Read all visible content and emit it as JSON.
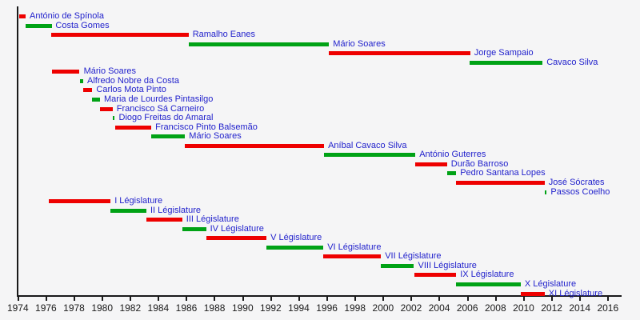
{
  "chart_data": {
    "type": "timeline",
    "title": "",
    "description": "Gantt-style timeline of Portuguese presidents, prime ministers and legislatures, 1974-2016",
    "x_axis": {
      "min": 1974,
      "max": 2017,
      "tick_step": 2,
      "tick_years": [
        1974,
        1976,
        1978,
        1980,
        1982,
        1984,
        1986,
        1988,
        1990,
        1992,
        1994,
        1996,
        1998,
        2000,
        2002,
        2004,
        2006,
        2008,
        2010,
        2012,
        2014,
        2016
      ]
    },
    "colors": {
      "red": "#ee0000",
      "green": "#00a215",
      "label_text": "#2222cc",
      "axis": "#1a1a1a",
      "tick_text": "#1a1a1a",
      "background": "#f5f5f6"
    },
    "sections": [
      {
        "name": "presidents",
        "rows": [
          {
            "label": "António de Spínola",
            "color": "red",
            "start": 1974.1,
            "end": 1974.55
          },
          {
            "label": "Costa Gomes",
            "color": "green",
            "start": 1974.55,
            "end": 1976.4
          },
          {
            "label": "Ramalho Eanes",
            "color": "red",
            "start": 1976.35,
            "end": 1986.15
          },
          {
            "label": "Mário Soares",
            "color": "green",
            "start": 1986.15,
            "end": 1996.15
          },
          {
            "label": "Jorge Sampaio",
            "color": "red",
            "start": 1996.15,
            "end": 2006.2
          },
          {
            "label": "Cavaco Silva",
            "color": "green",
            "start": 2006.15,
            "end": 2011.35
          }
        ]
      },
      {
        "name": "prime-ministers",
        "rows": [
          {
            "label": "Mário Soares",
            "color": "red",
            "start": 1976.45,
            "end": 1978.4
          },
          {
            "label": "Alfredo Nobre da Costa",
            "color": "green",
            "start": 1978.4,
            "end": 1978.65
          },
          {
            "label": "Carlos Mota Pinto",
            "color": "red",
            "start": 1978.65,
            "end": 1979.3
          },
          {
            "label": "Maria de Lourdes Pintasilgo",
            "color": "green",
            "start": 1979.3,
            "end": 1979.85
          },
          {
            "label": "Francisco Sá Carneiro",
            "color": "red",
            "start": 1979.85,
            "end": 1980.75
          },
          {
            "label": "Diogo Freitas do Amaral",
            "color": "green",
            "start": 1980.75,
            "end": 1980.9
          },
          {
            "label": "Francisco Pinto Balsemão",
            "color": "red",
            "start": 1980.9,
            "end": 1983.5
          },
          {
            "label": "Mário Soares",
            "color": "green",
            "start": 1983.5,
            "end": 1985.9
          },
          {
            "label": "Aníbal Cavaco Silva",
            "color": "red",
            "start": 1985.9,
            "end": 1995.8
          },
          {
            "label": "António Guterres",
            "color": "green",
            "start": 1995.8,
            "end": 2002.3
          },
          {
            "label": "Durão Barroso",
            "color": "red",
            "start": 2002.3,
            "end": 2004.55
          },
          {
            "label": "Pedro Santana Lopes",
            "color": "green",
            "start": 2004.55,
            "end": 2005.2
          },
          {
            "label": "José Sócrates",
            "color": "red",
            "start": 2005.2,
            "end": 2011.5
          },
          {
            "label": "Passos Coelho",
            "color": "green",
            "start": 2011.5,
            "end": 2011.65
          }
        ]
      },
      {
        "name": "legislatures",
        "rows": [
          {
            "label": "I Législature",
            "color": "red",
            "start": 1976.2,
            "end": 1980.6
          },
          {
            "label": "II Législature",
            "color": "green",
            "start": 1980.6,
            "end": 1983.15
          },
          {
            "label": "III Législature",
            "color": "red",
            "start": 1983.15,
            "end": 1985.7
          },
          {
            "label": "IV Législature",
            "color": "green",
            "start": 1985.7,
            "end": 1987.4
          },
          {
            "label": "V Législature",
            "color": "red",
            "start": 1987.4,
            "end": 1991.7
          },
          {
            "label": "VI Législature",
            "color": "green",
            "start": 1991.7,
            "end": 1995.75
          },
          {
            "label": "VII Législature",
            "color": "red",
            "start": 1995.75,
            "end": 1999.85
          },
          {
            "label": "VIII Législature",
            "color": "green",
            "start": 1999.85,
            "end": 2002.2
          },
          {
            "label": "IX Législature",
            "color": "red",
            "start": 2002.2,
            "end": 2005.2
          },
          {
            "label": "X Législature",
            "color": "green",
            "start": 2005.2,
            "end": 2009.8
          },
          {
            "label": "XI Législature",
            "color": "red",
            "start": 2009.8,
            "end": 2011.5
          }
        ]
      }
    ]
  }
}
